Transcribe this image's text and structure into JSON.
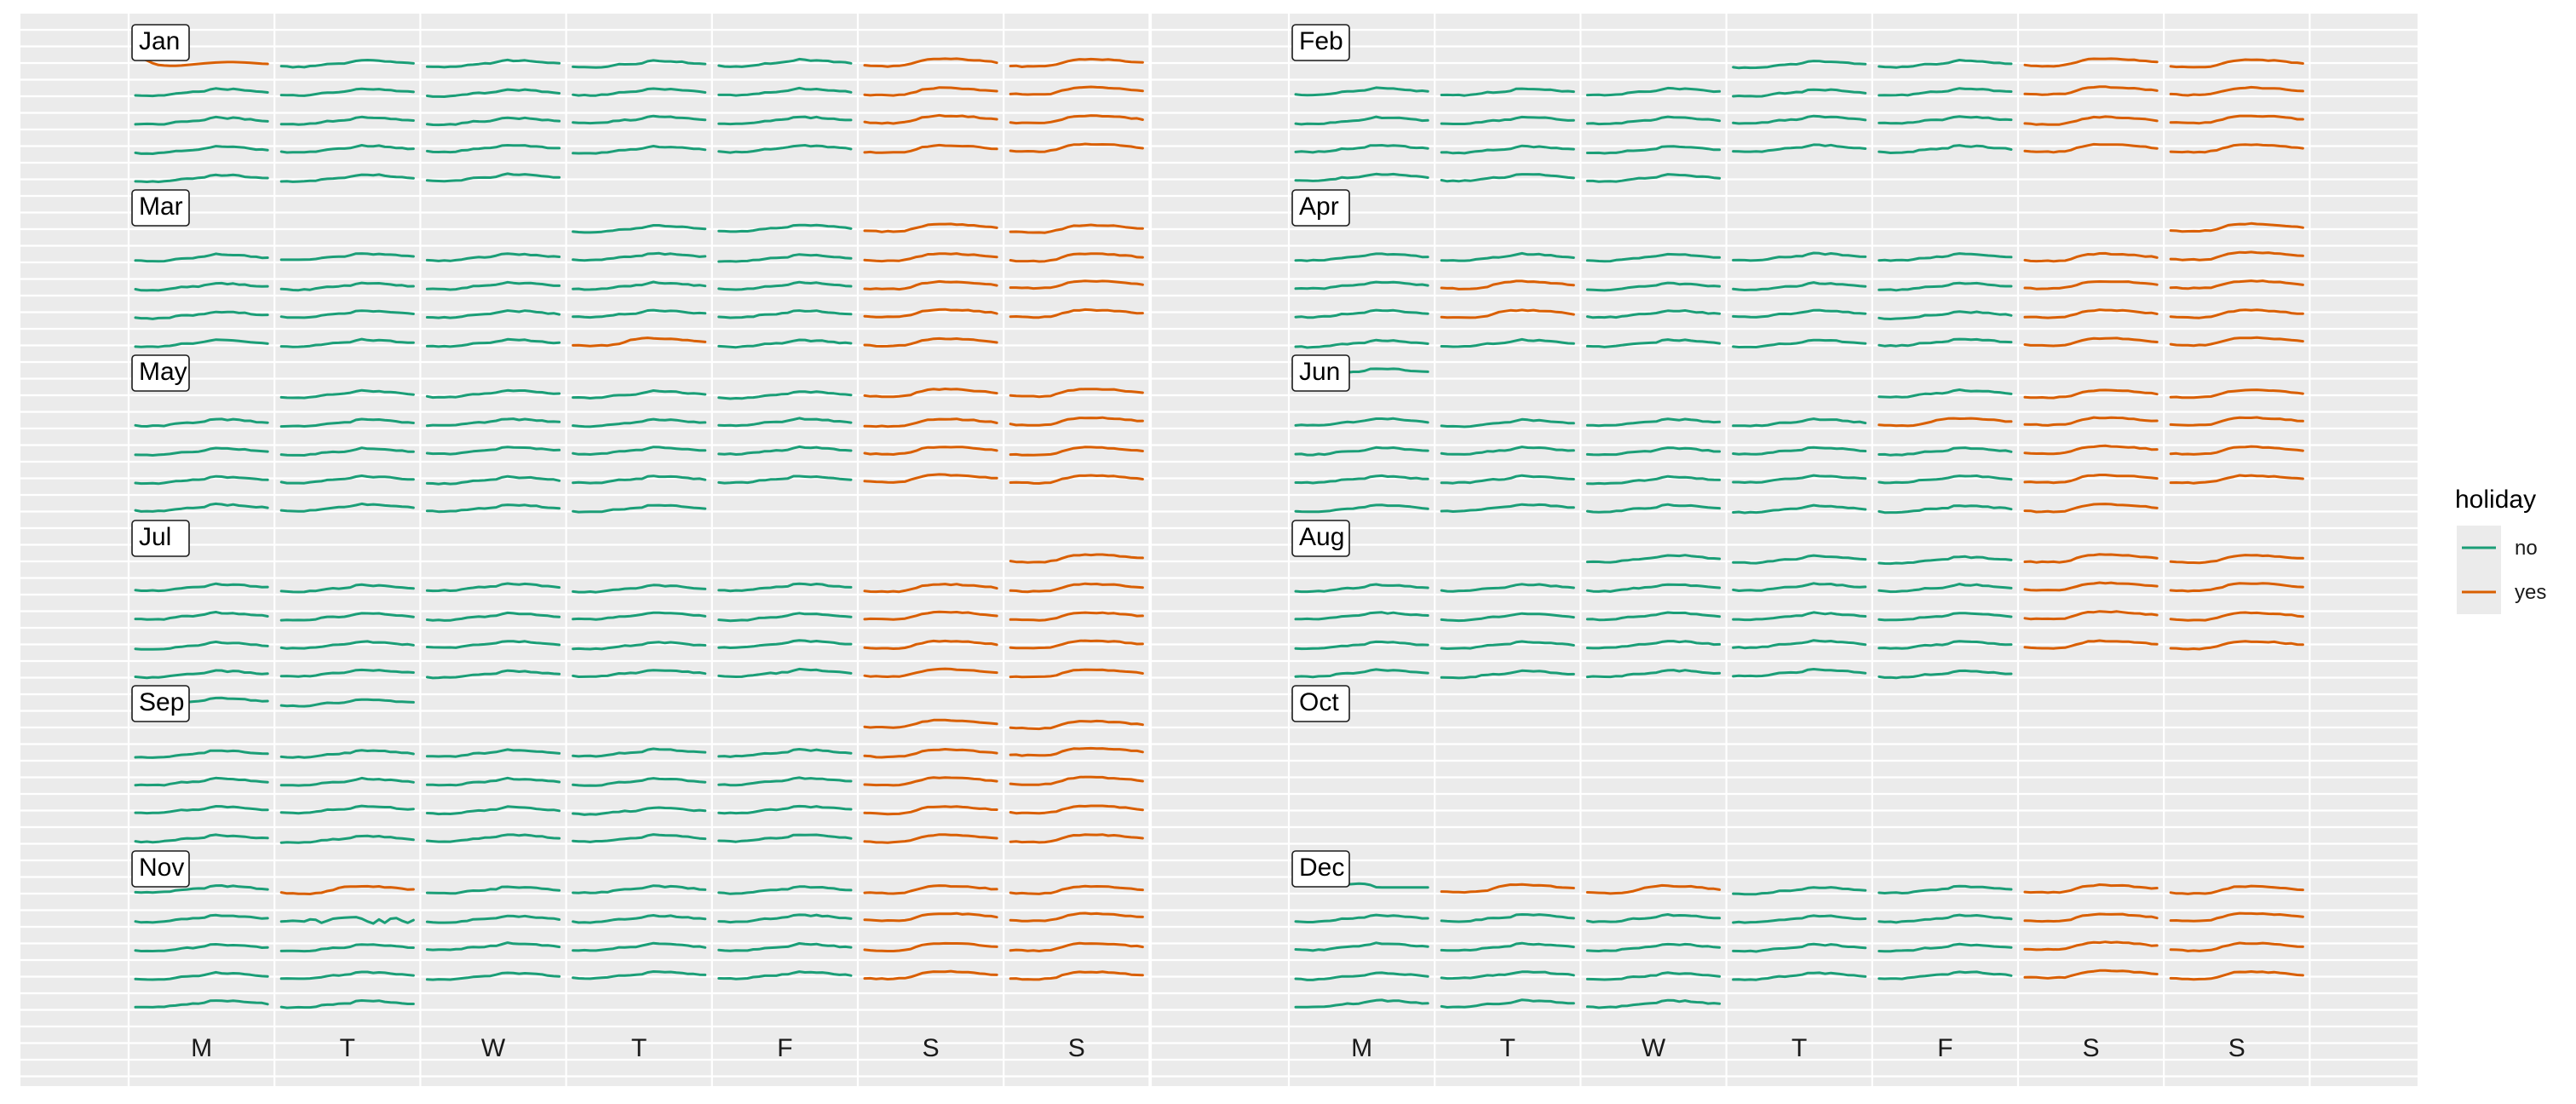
{
  "chart_data": {
    "type": "line",
    "title": "",
    "xlabel": "",
    "ylabel": "",
    "colors": {
      "no": "#1B9E77",
      "yes": "#D95F02",
      "panel_background": "#EBEBEB",
      "grid": "#FFFFFF"
    },
    "weekday_labels": [
      "M",
      "T",
      "W",
      "T",
      "F",
      "S",
      "S"
    ],
    "legend": {
      "title": "holiday",
      "placement": "right",
      "entries": [
        {
          "label": "no",
          "color": "#1B9E77"
        },
        {
          "label": "yes",
          "color": "#D95F02"
        }
      ]
    },
    "months": [
      {
        "name": "Jan",
        "start_weekday": 0,
        "days": 31,
        "extra_holidays": [
          1
        ]
      },
      {
        "name": "Feb",
        "start_weekday": 3,
        "days": 28,
        "extra_holidays": []
      },
      {
        "name": "Mar",
        "start_weekday": 3,
        "days": 31,
        "extra_holidays": [
          29
        ]
      },
      {
        "name": "Apr",
        "start_weekday": 6,
        "days": 30,
        "extra_holidays": [
          1,
          10,
          17
        ]
      },
      {
        "name": "May",
        "start_weekday": 1,
        "days": 31,
        "extra_holidays": []
      },
      {
        "name": "Jun",
        "start_weekday": 4,
        "days": 30,
        "extra_holidays": [
          8
        ]
      },
      {
        "name": "Jul",
        "start_weekday": 6,
        "days": 31,
        "extra_holidays": []
      },
      {
        "name": "Aug",
        "start_weekday": 2,
        "days": 31,
        "extra_holidays": []
      },
      {
        "name": "Sep",
        "start_weekday": 5,
        "days": 30,
        "extra_holidays": []
      },
      {
        "name": "Oct",
        "start_weekday": 0,
        "days": 0,
        "extra_holidays": []
      },
      {
        "name": "Nov",
        "start_weekday": 0,
        "days": 30,
        "extra_holidays": [
          2
        ]
      },
      {
        "name": "Dec",
        "start_weekday": 0,
        "days": 31,
        "extra_holidays": [
          2,
          3
        ]
      }
    ],
    "series": [
      {
        "name": "no",
        "description": "workday hourly profile",
        "hourly_profile": [
          0.3,
          0.28,
          0.27,
          0.27,
          0.28,
          0.3,
          0.35,
          0.42,
          0.48,
          0.5,
          0.52,
          0.55,
          0.6,
          0.72,
          0.78,
          0.75,
          0.72,
          0.74,
          0.7,
          0.66,
          0.62,
          0.58,
          0.55,
          0.52
        ]
      },
      {
        "name": "yes",
        "description": "holiday hourly profile",
        "hourly_profile": [
          0.35,
          0.33,
          0.31,
          0.3,
          0.3,
          0.3,
          0.32,
          0.36,
          0.45,
          0.58,
          0.7,
          0.78,
          0.82,
          0.84,
          0.84,
          0.83,
          0.82,
          0.8,
          0.78,
          0.74,
          0.7,
          0.66,
          0.62,
          0.58
        ]
      }
    ],
    "special_days": [
      {
        "month": "Jan",
        "day": 1,
        "hourly": [
          0.98,
          0.92,
          0.75,
          0.55,
          0.42,
          0.38,
          0.36,
          0.36,
          0.38,
          0.42,
          0.46,
          0.5,
          0.54,
          0.57,
          0.6,
          0.62,
          0.63,
          0.63,
          0.62,
          0.6,
          0.58,
          0.55,
          0.52,
          0.5
        ]
      },
      {
        "month": "Nov",
        "day": 9,
        "hourly": [
          0.3,
          0.32,
          0.35,
          0.33,
          0.3,
          0.45,
          0.42,
          0.2,
          0.35,
          0.5,
          0.55,
          0.58,
          0.6,
          0.62,
          0.5,
          0.3,
          0.15,
          0.45,
          0.2,
          0.5,
          0.55,
          0.35,
          0.2,
          0.4
        ]
      },
      {
        "month": "Dec",
        "day": 1,
        "hourly": [
          0.82,
          0.83,
          0.84,
          0.85,
          0.86,
          0.87,
          0.88,
          0.9,
          0.9,
          0.92,
          0.95,
          0.98,
          0.96,
          0.88,
          0.72,
          0.7,
          0.7,
          0.7,
          0.7,
          0.7,
          0.7,
          0.7,
          0.7,
          0.7
        ]
      }
    ]
  }
}
